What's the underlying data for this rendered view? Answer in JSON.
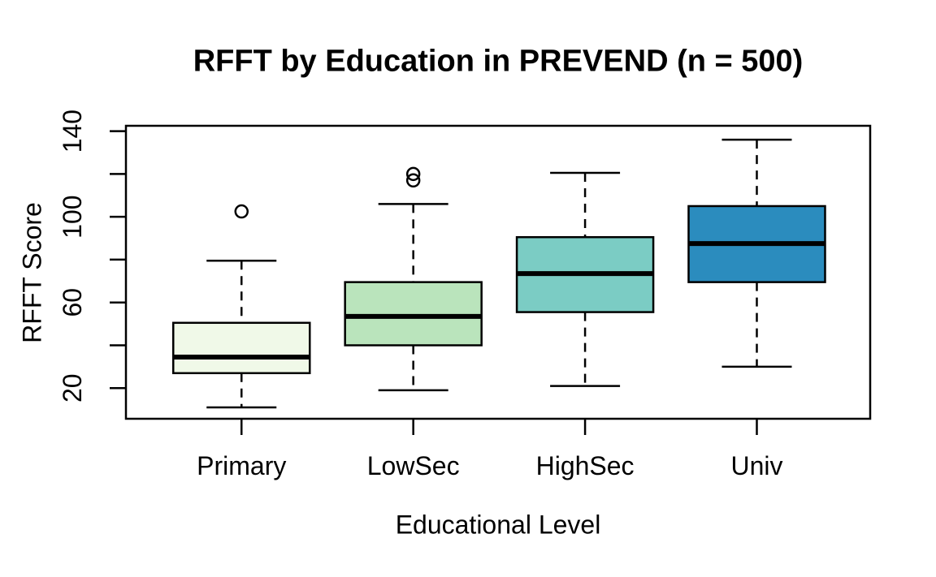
{
  "chart_data": {
    "type": "boxplot",
    "title": "RFFT by Education in PREVEND (n = 500)",
    "xlabel": "Educational Level",
    "ylabel": "RFFT Score",
    "ylim": [
      5.7,
      142.5
    ],
    "yticks": [
      20,
      40,
      60,
      80,
      100,
      120,
      140
    ],
    "ytick_labels": [
      "20",
      "",
      "60",
      "",
      "100",
      "",
      "140"
    ],
    "categories": [
      "Primary",
      "LowSec",
      "HighSec",
      "Univ"
    ],
    "series": [
      {
        "name": "Primary",
        "whisker_low": 11,
        "q1": 27,
        "median": 34.5,
        "q3": 50.5,
        "whisker_high": 79.5,
        "outliers": [
          102.5
        ],
        "fill": "#f0f9e8"
      },
      {
        "name": "LowSec",
        "whisker_low": 19,
        "q1": 40,
        "median": 53.5,
        "q3": 69.5,
        "whisker_high": 106,
        "outliers": [
          117,
          120
        ],
        "fill": "#bae4bc"
      },
      {
        "name": "HighSec",
        "whisker_low": 21,
        "q1": 55.5,
        "median": 73.5,
        "q3": 90.5,
        "whisker_high": 120.5,
        "outliers": [],
        "fill": "#7bccc4"
      },
      {
        "name": "Univ",
        "whisker_low": 30,
        "q1": 69.5,
        "median": 87.5,
        "q3": 105,
        "whisker_high": 136,
        "outliers": [],
        "fill": "#2b8cbe"
      }
    ],
    "stroke_color": "#000000",
    "background_color": "#ffffff",
    "grid": "off",
    "legend": "none"
  }
}
